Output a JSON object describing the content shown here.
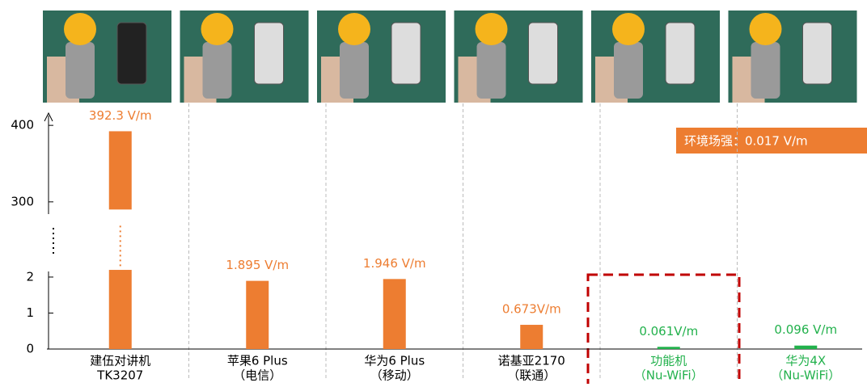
{
  "chart_data": {
    "type": "bar",
    "categories": [
      "建伍对讲机",
      "苹果6 Plus",
      "华为6 Plus",
      "诺基亚2170",
      "功能机",
      "华为4X"
    ],
    "category_notes": [
      "TK3207",
      "（电信）",
      "（移动）",
      "（联通）",
      "（Nu-WiFi）",
      "（Nu-WiFi）"
    ],
    "values": [
      392.3,
      1.895,
      1.946,
      0.673,
      0.061,
      0.096
    ],
    "value_labels": [
      "392.3 V/m",
      "1.895 V/m",
      "1.946 V/m",
      "0.673V/m",
      "0.061V/m",
      "0.096  V/m"
    ],
    "colors": [
      "#ed7d31",
      "#ed7d31",
      "#ed7d31",
      "#ed7d31",
      "#22b14c",
      "#22b14c"
    ],
    "y_segments": [
      {
        "ylim": [
          0,
          2.56
        ],
        "yticks": [
          0,
          1,
          2
        ]
      },
      {
        "ylim": [
          284,
          416
        ],
        "yticks": [
          300,
          400
        ]
      }
    ],
    "annotation": "环境场强：0.017 V/m"
  }
}
